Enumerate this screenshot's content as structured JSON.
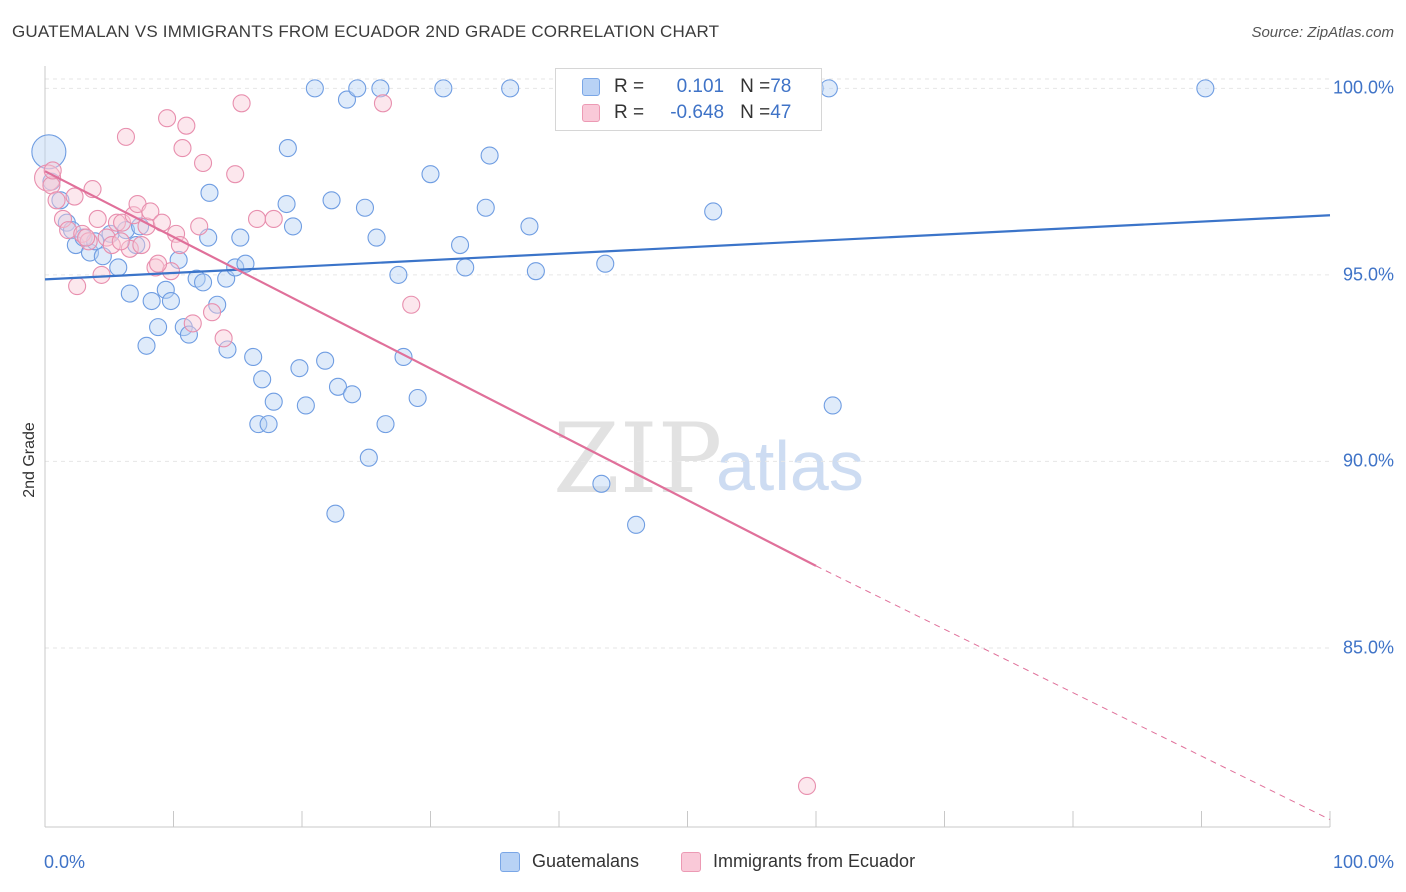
{
  "title": "GUATEMALAN VS IMMIGRANTS FROM ECUADOR 2ND GRADE CORRELATION CHART",
  "source": "Source: ZipAtlas.com",
  "watermark": {
    "zip": "ZIP",
    "atlas": "atlas"
  },
  "legend_top": {
    "blue": {
      "r_label": "R = ",
      "r_value": "0.101",
      "n_label": "N = ",
      "n_value": "78"
    },
    "pink": {
      "r_label": "R = ",
      "r_value": "-0.648",
      "n_label": "N = ",
      "n_value": "47"
    }
  },
  "legend_bottom": {
    "blue": "Guatemalans",
    "pink": "Immigrants from Ecuador"
  },
  "colors": {
    "blue": "#3b74c9",
    "pink": "#e0709a",
    "blue_fill": "#b8d2f5",
    "pink_fill": "#f9c9d8"
  },
  "chart_data": {
    "type": "scatter",
    "title": "GUATEMALAN VS IMMIGRANTS FROM ECUADOR 2ND GRADE CORRELATION CHART",
    "xlabel": "",
    "ylabel": "2nd Grade",
    "xlim": [
      0,
      100
    ],
    "ylim": [
      80.2,
      100.6
    ],
    "x_tick_labels": [
      "0.0%",
      "100.0%"
    ],
    "y_ticks": [
      100,
      95,
      90,
      85
    ],
    "y_tick_labels": [
      "100.0%",
      "95.0%",
      "90.0%",
      "85.0%"
    ],
    "grid": true,
    "series": [
      {
        "name": "Guatemalans",
        "color": "#3b74c9",
        "trend": {
          "x": [
            0,
            100
          ],
          "y": [
            94.88,
            96.6
          ]
        },
        "points": [
          [
            0.3,
            98.3
          ],
          [
            0.5,
            97.5
          ],
          [
            1.2,
            97.0
          ],
          [
            1.7,
            96.4
          ],
          [
            2.1,
            96.2
          ],
          [
            2.4,
            95.8
          ],
          [
            3.0,
            96.0
          ],
          [
            3.5,
            95.6
          ],
          [
            3.9,
            95.9
          ],
          [
            4.5,
            95.5
          ],
          [
            5.1,
            96.1
          ],
          [
            5.7,
            95.2
          ],
          [
            6.3,
            96.2
          ],
          [
            6.6,
            94.5
          ],
          [
            7.1,
            95.8
          ],
          [
            7.4,
            96.3
          ],
          [
            7.9,
            93.1
          ],
          [
            8.3,
            94.3
          ],
          [
            8.8,
            93.6
          ],
          [
            9.4,
            94.6
          ],
          [
            9.8,
            94.3
          ],
          [
            10.4,
            95.4
          ],
          [
            10.8,
            93.6
          ],
          [
            11.2,
            93.4
          ],
          [
            11.8,
            94.9
          ],
          [
            12.3,
            94.8
          ],
          [
            12.7,
            96.0
          ],
          [
            12.8,
            97.2
          ],
          [
            13.4,
            94.2
          ],
          [
            14.2,
            93.0
          ],
          [
            14.1,
            94.9
          ],
          [
            14.8,
            95.2
          ],
          [
            15.2,
            96.0
          ],
          [
            15.6,
            95.3
          ],
          [
            16.2,
            92.8
          ],
          [
            16.6,
            91.0
          ],
          [
            16.9,
            92.2
          ],
          [
            17.4,
            91.0
          ],
          [
            17.8,
            91.6
          ],
          [
            18.8,
            96.9
          ],
          [
            18.9,
            98.4
          ],
          [
            19.3,
            96.3
          ],
          [
            19.8,
            92.5
          ],
          [
            20.3,
            91.5
          ],
          [
            21.0,
            100.0
          ],
          [
            21.8,
            92.7
          ],
          [
            22.3,
            97.0
          ],
          [
            22.6,
            88.6
          ],
          [
            22.8,
            92.0
          ],
          [
            23.5,
            99.7
          ],
          [
            23.9,
            91.8
          ],
          [
            24.3,
            100.0
          ],
          [
            24.9,
            96.8
          ],
          [
            25.2,
            90.1
          ],
          [
            25.8,
            96.0
          ],
          [
            26.1,
            100.0
          ],
          [
            26.5,
            91.0
          ],
          [
            27.5,
            95.0
          ],
          [
            27.9,
            92.8
          ],
          [
            29.0,
            91.7
          ],
          [
            30.0,
            97.7
          ],
          [
            31.0,
            100.0
          ],
          [
            32.3,
            95.8
          ],
          [
            32.7,
            95.2
          ],
          [
            34.3,
            96.8
          ],
          [
            34.6,
            98.2
          ],
          [
            36.2,
            100.0
          ],
          [
            37.7,
            96.3
          ],
          [
            38.2,
            95.1
          ],
          [
            43.3,
            89.4
          ],
          [
            43.6,
            95.3
          ],
          [
            46.0,
            88.3
          ],
          [
            52.0,
            96.7
          ],
          [
            59.4,
            100.0
          ],
          [
            59.9,
            100.0
          ],
          [
            61.0,
            100.0
          ],
          [
            61.3,
            91.5
          ],
          [
            90.3,
            100.0
          ]
        ]
      },
      {
        "name": "Immigrants from Ecuador",
        "color": "#e0709a",
        "trend": {
          "x": [
            0,
            60
          ],
          "y": [
            97.78,
            87.2
          ]
        },
        "trend_dashed": {
          "x": [
            60,
            100
          ],
          "y": [
            87.2,
            80.4
          ]
        },
        "points": [
          [
            0.2,
            97.6
          ],
          [
            0.5,
            97.4
          ],
          [
            0.9,
            97.0
          ],
          [
            1.4,
            96.5
          ],
          [
            1.8,
            96.2
          ],
          [
            2.3,
            97.1
          ],
          [
            2.5,
            94.7
          ],
          [
            2.9,
            96.1
          ],
          [
            3.4,
            95.9
          ],
          [
            3.7,
            97.3
          ],
          [
            4.1,
            96.5
          ],
          [
            4.4,
            95.0
          ],
          [
            4.8,
            96.0
          ],
          [
            5.2,
            95.8
          ],
          [
            5.6,
            96.4
          ],
          [
            6.0,
            96.4
          ],
          [
            6.3,
            98.7
          ],
          [
            6.6,
            95.7
          ],
          [
            6.9,
            96.6
          ],
          [
            7.2,
            96.9
          ],
          [
            7.5,
            95.8
          ],
          [
            7.9,
            96.3
          ],
          [
            8.2,
            96.7
          ],
          [
            8.6,
            95.2
          ],
          [
            9.1,
            96.4
          ],
          [
            9.5,
            99.2
          ],
          [
            9.8,
            95.1
          ],
          [
            10.2,
            96.1
          ],
          [
            10.5,
            95.8
          ],
          [
            10.7,
            98.4
          ],
          [
            11.0,
            99.0
          ],
          [
            11.5,
            93.7
          ],
          [
            12.3,
            98.0
          ],
          [
            13.0,
            94.0
          ],
          [
            13.9,
            93.3
          ],
          [
            14.8,
            97.7
          ],
          [
            15.3,
            99.6
          ],
          [
            16.5,
            96.5
          ],
          [
            17.8,
            96.5
          ],
          [
            26.3,
            99.6
          ],
          [
            28.5,
            94.2
          ],
          [
            59.3,
            81.3
          ],
          [
            0.6,
            97.8
          ],
          [
            3.2,
            96.0
          ],
          [
            5.9,
            95.9
          ],
          [
            8.8,
            95.3
          ],
          [
            12.0,
            96.3
          ]
        ]
      }
    ]
  }
}
